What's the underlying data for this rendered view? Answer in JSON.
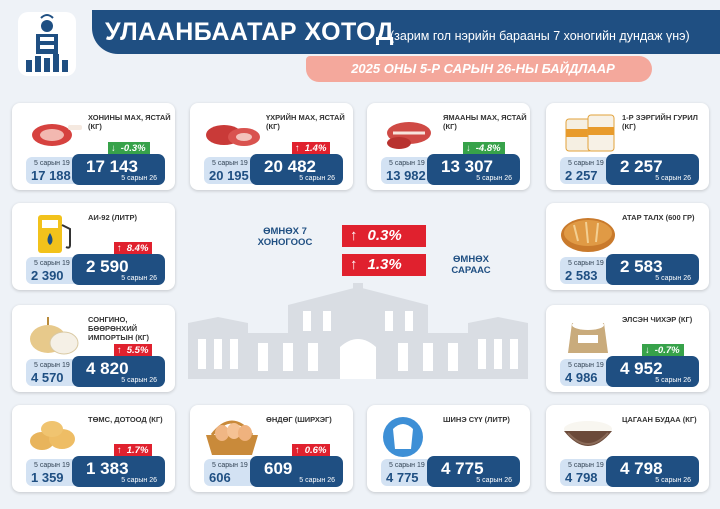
{
  "header": {
    "title": "УЛААНБААТАР ХОТОД",
    "subtitle": "(зарим гол нэрийн барааны 7 хоногийн дундаж үнэ)",
    "date": "2025 ОНЫ 5-Р САРЫН 26-НЫ БАЙДЛААР"
  },
  "center": {
    "week_label": "ӨМНӨХ 7 ХОНОГООС",
    "week_change": "0.3%",
    "month_label": "ӨМНӨХ САРААС",
    "month_change": "1.3%"
  },
  "colors": {
    "navy": "#1f4f82",
    "up": "#e0212e",
    "down": "#37a24a",
    "pink": "#f4a89c",
    "light_blue": "#d3e2f3"
  },
  "cards": [
    {
      "id": "mutton",
      "name": "ХОНИНЫ МАХ, ЯСТАЙ (КГ)",
      "icon": "mutton-meat-icon",
      "change": "-0.3%",
      "direction": "down",
      "old_label": "5 сарын 19",
      "old_value": "17 188",
      "new_value": "17 143",
      "new_label": "5 сарын 26"
    },
    {
      "id": "beef",
      "name": "ҮХРИЙН МАХ, ЯСТАЙ (КГ)",
      "icon": "beef-meat-icon",
      "change": "1.4%",
      "direction": "up",
      "old_label": "5 сарын 19",
      "old_value": "20 195",
      "new_value": "20 482",
      "new_label": "5 сарын 26"
    },
    {
      "id": "goat",
      "name": "ЯМААНЫ МАХ, ЯСТАЙ (КГ)",
      "icon": "goat-meat-icon",
      "change": "-4.8%",
      "direction": "down",
      "old_label": "5 сарын 19",
      "old_value": "13 982",
      "new_value": "13 307",
      "new_label": "5 сарын 26"
    },
    {
      "id": "flour",
      "name": "1-Р ЗЭРГИЙН ГУРИЛ (КГ)",
      "icon": "flour-bag-icon",
      "change": "",
      "direction": "none",
      "old_label": "5 сарын 19",
      "old_value": "2 257",
      "new_value": "2 257",
      "new_label": "5 сарын 26"
    },
    {
      "id": "fuel",
      "name": "АИ-92 (ЛИТР)",
      "icon": "fuel-pump-icon",
      "change": "8.4%",
      "direction": "up",
      "old_label": "5 сарын 19",
      "old_value": "2 390",
      "new_value": "2 590",
      "new_label": "5 сарын 26"
    },
    {
      "id": "bread",
      "name": "АТАР ТАЛХ (600 ГР)",
      "icon": "bread-loaf-icon",
      "change": "",
      "direction": "none",
      "old_label": "5 сарын 19",
      "old_value": "2 583",
      "new_value": "2 583",
      "new_label": "5 сарын 26"
    },
    {
      "id": "onion",
      "name": "СОНГИНО, БӨӨРӨНХИЙ ИМПОРТЫН (КГ)",
      "icon": "onion-icon",
      "change": "5.5%",
      "direction": "up",
      "old_label": "5 сарын 19",
      "old_value": "4 570",
      "new_value": "4 820",
      "new_label": "5 сарын 26"
    },
    {
      "id": "sugar",
      "name": "ЭЛСЭН ЧИХЭР (КГ)",
      "icon": "sugar-sack-icon",
      "change": "-0.7%",
      "direction": "down",
      "old_label": "5 сарын 19",
      "old_value": "4 986",
      "new_value": "4 952",
      "new_label": "5 сарын 26"
    },
    {
      "id": "potato",
      "name": "ТӨМС, ДОТООД (КГ)",
      "icon": "potato-icon",
      "change": "1.7%",
      "direction": "up",
      "old_label": "5 сарын 19",
      "old_value": "1 359",
      "new_value": "1 383",
      "new_label": "5 сарын 26"
    },
    {
      "id": "eggs",
      "name": "ӨНДӨГ (ШИРХЭГ)",
      "icon": "egg-basket-icon",
      "change": "0.6%",
      "direction": "up",
      "old_label": "5 сарын 19",
      "old_value": "606",
      "new_value": "609",
      "new_label": "5 сарын 26"
    },
    {
      "id": "milk",
      "name": "ШИНЭ СҮҮ (ЛИТР)",
      "icon": "milk-splash-icon",
      "change": "",
      "direction": "none",
      "old_label": "5 сарын 19",
      "old_value": "4 775",
      "new_value": "4 775",
      "new_label": "5 сарын 26"
    },
    {
      "id": "rice",
      "name": "ЦАГААН БУДАА (КГ)",
      "icon": "rice-bowl-icon",
      "change": "",
      "direction": "none",
      "old_label": "5 сарын 19",
      "old_value": "4 798",
      "new_value": "4 798",
      "new_label": "5 сарын 26"
    }
  ]
}
